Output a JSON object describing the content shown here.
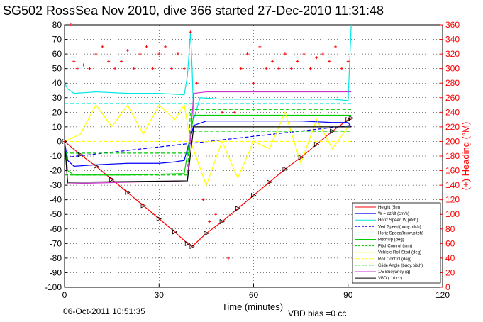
{
  "page": {
    "title": "SG502 RossSea Nov 2010, dive 366 started 27-Dec-2010 11:31:48",
    "timestamp": "06-Oct-2011 10:51:35",
    "vbd_bias": "VBD bias =0 cc"
  },
  "chart_data": {
    "type": "line",
    "title": "SG502 RossSea Nov 2010, dive 366 started 27-Dec-2010 11:31:48",
    "xlabel": "Time (minutes)",
    "ylabel": "",
    "ylabel_right": "(+) Heading (°M)",
    "xlim": [
      0,
      120
    ],
    "ylim": [
      -100,
      80
    ],
    "ylim_right": [
      0,
      360
    ],
    "grid": true,
    "legend_position": "bottom-right",
    "x_ticks": [
      "0",
      "30",
      "60",
      "90",
      "120"
    ],
    "y_ticks": [
      "80",
      "70",
      "60",
      "50",
      "40",
      "30",
      "20",
      "10",
      "0",
      "-10",
      "-20",
      "-30",
      "-40",
      "-50",
      "-60",
      "-70",
      "-80",
      "-90",
      "-100"
    ],
    "y_ticks_right": [
      "360",
      "340",
      "320",
      "300",
      "280",
      "260",
      "240",
      "220",
      "200",
      "180",
      "160",
      "140",
      "120",
      "100",
      "80",
      "60",
      "40",
      "20",
      "0"
    ],
    "series": [
      {
        "name": "Height (5m)",
        "color": "#ff0000",
        "style": "solid-markers",
        "x": [
          0,
          5,
          10,
          15,
          20,
          25,
          30,
          35,
          39,
          40.5,
          45,
          50,
          55,
          60,
          65,
          70,
          75,
          80,
          85,
          90,
          91
        ],
        "y": [
          0,
          -9,
          -17,
          -26,
          -35,
          -44,
          -53,
          -62,
          -70,
          -72,
          -63,
          -55,
          -46,
          -37,
          -28,
          -19,
          -11,
          -2,
          7,
          15,
          16
        ]
      },
      {
        "name": "W = dz/dt (cm/s)",
        "color": "#0000ff",
        "style": "solid",
        "x": [
          0,
          1,
          3,
          10,
          20,
          30,
          35,
          38,
          41,
          45,
          60,
          75,
          85,
          90,
          91
        ],
        "y": [
          0,
          -13,
          -17,
          -16,
          -15,
          -15,
          -14,
          -13,
          11,
          14,
          14,
          14,
          13,
          13,
          10
        ]
      },
      {
        "name": "Horiz Speed W,pitch)",
        "color": "#00e5e5",
        "style": "solid",
        "x": [
          0,
          1,
          3,
          10,
          20,
          30,
          38,
          39,
          40,
          40.5,
          41,
          43,
          50,
          60,
          75,
          85,
          90,
          91
        ],
        "y": [
          40,
          36,
          33,
          34,
          33,
          33,
          32,
          45,
          75,
          50,
          15,
          30,
          29,
          29,
          29,
          29,
          28,
          80
        ]
      },
      {
        "name": "Vert Speed(buoy,pitch)",
        "color": "#0000ff",
        "style": "dashed",
        "x": [
          0,
          91
        ],
        "y": [
          -11,
          11
        ]
      },
      {
        "name": "Horiz Speed(buoy,pitch)",
        "color": "#00e5e5",
        "style": "dashed",
        "x": [
          0,
          91
        ],
        "y": [
          26,
          26
        ]
      },
      {
        "name": "PitchUp (deg)",
        "color": "#00cc00",
        "style": "solid",
        "x": [
          0,
          1,
          3,
          20,
          38,
          41,
          60,
          91
        ],
        "y": [
          0,
          -20,
          -23,
          -23,
          -22,
          18,
          18,
          18
        ]
      },
      {
        "name": "PitchControl (mm)",
        "color": "#00cc00",
        "style": "dashed",
        "x": [
          0,
          39,
          40,
          91
        ],
        "y": [
          -8,
          -8,
          7,
          7
        ]
      },
      {
        "name": "Vehicle Roll Stbd (deg)",
        "color": "#ffff00",
        "style": "solid",
        "x": [
          0,
          5,
          10,
          15,
          20,
          25,
          30,
          35,
          38,
          40,
          45,
          50,
          55,
          60,
          65,
          70,
          75,
          80,
          85,
          90
        ],
        "y": [
          0,
          5,
          25,
          10,
          25,
          5,
          25,
          15,
          25,
          0,
          -30,
          0,
          -25,
          0,
          -5,
          20,
          -15,
          15,
          -5,
          10
        ]
      },
      {
        "name": "Roll Control (deg)",
        "color": "#ffff00",
        "style": "dashed",
        "x": [
          0,
          91
        ],
        "y": [
          0,
          0
        ]
      },
      {
        "name": "Glide Angle (buoy,pitch)",
        "color": "#00cc00",
        "style": "dashed",
        "x": [
          0,
          39,
          40,
          91
        ],
        "y": [
          -23,
          -23,
          22,
          22
        ]
      },
      {
        "name": "1/5 Buoyancy (g)",
        "color": "#cc33cc",
        "style": "solid",
        "x": [
          0,
          1,
          39,
          41,
          45,
          91
        ],
        "y": [
          0,
          -29,
          -27,
          33,
          34,
          34
        ]
      },
      {
        "name": "VBD ( 10 cc)",
        "color": "#000000",
        "style": "solid",
        "x": [
          0,
          1,
          39,
          41,
          91
        ],
        "y": [
          0,
          -28,
          -27,
          10,
          10
        ]
      }
    ],
    "heading": {
      "name": "(+) Heading (°M)",
      "color": "#ff0000",
      "axis": "right",
      "x": [
        0,
        2,
        3,
        4,
        6,
        8,
        10,
        12,
        14,
        16,
        18,
        20,
        22,
        24,
        26,
        28,
        30,
        32,
        34,
        36,
        38,
        40,
        42,
        44,
        46,
        48,
        50,
        52,
        54,
        56,
        58,
        60,
        62,
        64,
        66,
        68,
        70,
        72,
        74,
        76,
        78,
        80,
        82,
        84,
        86,
        88,
        90
      ],
      "y": [
        200,
        360,
        310,
        300,
        305,
        300,
        320,
        330,
        310,
        300,
        310,
        325,
        300,
        320,
        330,
        300,
        320,
        330,
        300,
        320,
        300,
        350,
        280,
        120,
        90,
        100,
        240,
        40,
        240,
        300,
        320,
        280,
        330,
        300,
        310,
        300,
        320,
        300,
        310,
        320,
        300,
        315,
        320,
        310,
        330,
        300,
        310
      ]
    },
    "footer_left": "06-Oct-2011 10:51:35",
    "footer_right": "VBD bias =0 cc"
  }
}
